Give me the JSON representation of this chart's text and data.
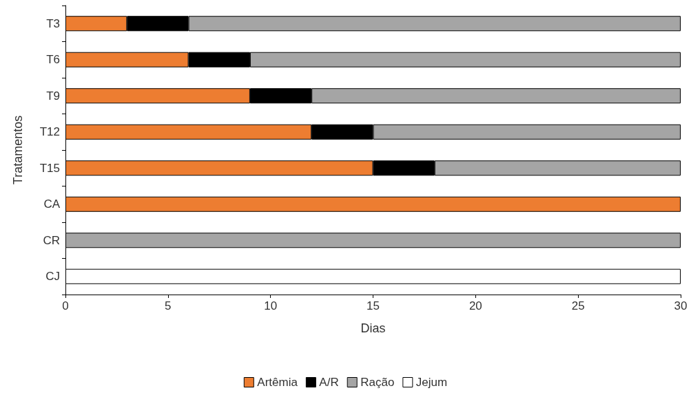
{
  "chart_data": {
    "type": "bar",
    "orientation": "horizontal",
    "stacked": true,
    "xlabel": "Dias",
    "ylabel": "Tratamentos",
    "categories": [
      "T3",
      "T6",
      "T9",
      "T12",
      "T15",
      "CA",
      "CR",
      "CJ"
    ],
    "series": [
      {
        "name": "Artêmia",
        "color": "#ed7d31",
        "values": [
          3,
          6,
          9,
          12,
          15,
          30,
          null,
          null
        ]
      },
      {
        "name": "A/R",
        "color": "#000000",
        "values": [
          3,
          3,
          3,
          3,
          3,
          null,
          null,
          null
        ]
      },
      {
        "name": "Ração",
        "color": "#a5a5a5",
        "values": [
          24,
          21,
          18,
          15,
          12,
          null,
          30,
          null
        ]
      },
      {
        "name": "Jejum",
        "color": "#ffffff",
        "values": [
          null,
          null,
          null,
          null,
          null,
          null,
          null,
          30
        ]
      }
    ],
    "xlim": [
      0,
      30
    ],
    "xticks": [
      0,
      5,
      10,
      15,
      20,
      25,
      30
    ],
    "grid": false,
    "legend": "bottom"
  }
}
